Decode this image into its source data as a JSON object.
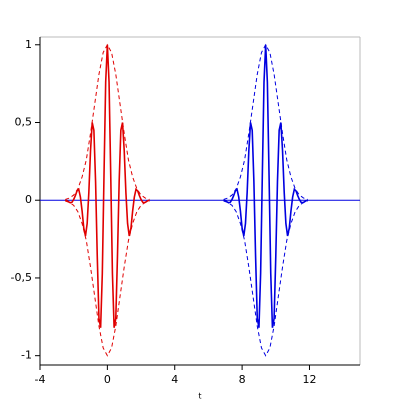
{
  "chart_data": {
    "type": "line",
    "x_label": "t",
    "xlim": [
      -4,
      15
    ],
    "ylim": [
      -1.06,
      1.05
    ],
    "xticks": [
      -4,
      0,
      4,
      8,
      12
    ],
    "yticks": [
      {
        "value": -1,
        "label": "-1"
      },
      {
        "value": -0.5,
        "label": "-0,5"
      },
      {
        "value": 0,
        "label": "0"
      },
      {
        "value": 0.5,
        "label": "0,5"
      },
      {
        "value": 1,
        "label": "1"
      }
    ],
    "series": [
      {
        "color": "#e00000",
        "dashed": false,
        "x": [
          -2.5,
          -2.4,
          -2.3,
          -2.2,
          -2.1,
          -2,
          -1.9,
          -1.8,
          -1.7,
          -1.6,
          -1.5,
          -1.4,
          -1.3,
          -1.2,
          -1.1,
          -1,
          -0.9,
          -0.8,
          -0.7,
          -0.6,
          -0.5,
          -0.4,
          -0.3,
          -0.2,
          -0.1,
          0,
          0.1,
          0.2,
          0.3,
          0.4,
          0.5,
          0.6,
          0.7,
          0.8,
          0.9,
          1,
          1.1,
          1.2,
          1.3,
          1.4,
          1.5,
          1.6,
          1.7,
          1.8,
          1.9,
          2,
          2.1,
          2.2,
          2.3,
          2.4,
          2.5
        ],
        "values": [
          0.001,
          -0.003,
          -0.01,
          -0.016,
          -0.013,
          0.005,
          0.03,
          0.06,
          0.07,
          0.02,
          -0.07,
          -0.18,
          -0.23,
          -0.15,
          0.05,
          0.32,
          0.5,
          0.45,
          0.12,
          -0.36,
          -0.76,
          -0.82,
          -0.47,
          0.16,
          0.76,
          1,
          0.76,
          0.16,
          -0.47,
          -0.82,
          -0.76,
          -0.36,
          0.12,
          0.45,
          0.5,
          0.32,
          0.05,
          -0.15,
          -0.23,
          -0.18,
          -0.07,
          0.02,
          0.07,
          0.06,
          0.03,
          0.005,
          -0.013,
          -0.016,
          -0.01,
          -0.003,
          0.001
        ]
      },
      {
        "color": "#e00000",
        "dashed": true,
        "x": [
          -2.5,
          -2.25,
          -2,
          -1.75,
          -1.5,
          -1.25,
          -1,
          -0.75,
          -0.5,
          -0.25,
          0,
          0.25,
          0.5,
          0.75,
          1,
          1.25,
          1.5,
          1.75,
          2,
          2.25,
          2.5
        ],
        "values": [
          0.005,
          0.014,
          0.033,
          0.074,
          0.15,
          0.26,
          0.43,
          0.62,
          0.81,
          0.95,
          1,
          0.95,
          0.81,
          0.62,
          0.43,
          0.26,
          0.15,
          0.074,
          0.033,
          0.014,
          0.005
        ]
      },
      {
        "color": "#e00000",
        "dashed": true,
        "x": [
          -2.5,
          -2.25,
          -2,
          -1.75,
          -1.5,
          -1.25,
          -1,
          -0.75,
          -0.5,
          -0.25,
          0,
          0.25,
          0.5,
          0.75,
          1,
          1.25,
          1.5,
          1.75,
          2,
          2.25,
          2.5
        ],
        "values": [
          -0.005,
          -0.014,
          -0.033,
          -0.074,
          -0.15,
          -0.26,
          -0.43,
          -0.62,
          -0.81,
          -0.95,
          -1,
          -0.95,
          -0.81,
          -0.62,
          -0.43,
          -0.26,
          -0.15,
          -0.074,
          -0.033,
          -0.014,
          -0.005
        ]
      },
      {
        "color": "#0000e0",
        "dashed": false,
        "x": [
          6.9,
          7,
          7.1,
          7.2,
          7.3,
          7.4,
          7.5,
          7.6,
          7.7,
          7.8,
          7.9,
          8,
          8.1,
          8.2,
          8.3,
          8.4,
          8.5,
          8.6,
          8.7,
          8.8,
          8.9,
          9,
          9.1,
          9.2,
          9.3,
          9.4,
          9.5,
          9.6,
          9.7,
          9.8,
          9.9,
          10,
          10.1,
          10.2,
          10.3,
          10.4,
          10.5,
          10.6,
          10.7,
          10.8,
          10.9,
          11,
          11.1,
          11.2,
          11.3,
          11.4,
          11.5,
          11.6,
          11.7,
          11.8,
          11.9
        ],
        "values": [
          0.001,
          -0.003,
          -0.01,
          -0.016,
          -0.013,
          0.005,
          0.03,
          0.06,
          0.07,
          0.02,
          -0.07,
          -0.18,
          -0.23,
          -0.15,
          0.05,
          0.32,
          0.5,
          0.45,
          0.12,
          -0.36,
          -0.76,
          -0.82,
          -0.47,
          0.16,
          0.76,
          1,
          0.76,
          0.16,
          -0.47,
          -0.82,
          -0.76,
          -0.36,
          0.12,
          0.45,
          0.5,
          0.32,
          0.05,
          -0.15,
          -0.23,
          -0.18,
          -0.07,
          0.02,
          0.07,
          0.06,
          0.03,
          0.005,
          -0.013,
          -0.016,
          -0.01,
          -0.003,
          0.001
        ]
      },
      {
        "color": "#0000e0",
        "dashed": true,
        "x": [
          6.9,
          7.15,
          7.4,
          7.65,
          7.9,
          8.15,
          8.4,
          8.65,
          8.9,
          9.15,
          9.4,
          9.65,
          9.9,
          10.15,
          10.4,
          10.65,
          10.9,
          11.15,
          11.4,
          11.65,
          11.9
        ],
        "values": [
          0.005,
          0.014,
          0.033,
          0.074,
          0.15,
          0.26,
          0.43,
          0.62,
          0.81,
          0.95,
          1,
          0.95,
          0.81,
          0.62,
          0.43,
          0.26,
          0.15,
          0.074,
          0.033,
          0.014,
          0.005
        ]
      },
      {
        "color": "#0000e0",
        "dashed": true,
        "x": [
          6.9,
          7.15,
          7.4,
          7.65,
          7.9,
          8.15,
          8.4,
          8.65,
          8.9,
          9.15,
          9.4,
          9.65,
          9.9,
          10.15,
          10.4,
          10.65,
          10.9,
          11.15,
          11.4,
          11.65,
          11.9
        ],
        "values": [
          -0.005,
          -0.014,
          -0.033,
          -0.074,
          -0.15,
          -0.26,
          -0.43,
          -0.62,
          -0.81,
          -0.95,
          -1,
          -0.95,
          -0.81,
          -0.62,
          -0.43,
          -0.26,
          -0.15,
          -0.074,
          -0.033,
          -0.014,
          -0.005
        ]
      }
    ]
  }
}
